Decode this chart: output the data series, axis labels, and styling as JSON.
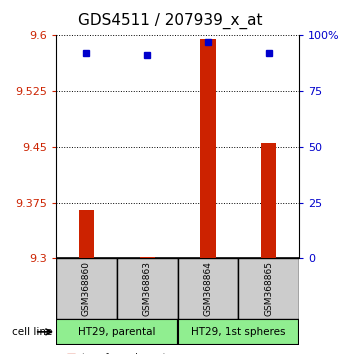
{
  "title": "GDS4511 / 207939_x_at",
  "samples": [
    "GSM368860",
    "GSM368863",
    "GSM368864",
    "GSM368865"
  ],
  "transformed_counts": [
    9.365,
    9.302,
    9.595,
    9.455
  ],
  "percentile_ranks": [
    92,
    91,
    97,
    92
  ],
  "cell_lines": [
    {
      "label": "HT29, parental",
      "samples": [
        0,
        1
      ],
      "color": "#90ee90"
    },
    {
      "label": "HT29, 1st spheres",
      "samples": [
        2,
        3
      ],
      "color": "#90ee90"
    }
  ],
  "ylim_left": [
    9.3,
    9.6
  ],
  "ylim_right": [
    0,
    100
  ],
  "yticks_left": [
    9.3,
    9.375,
    9.45,
    9.525,
    9.6
  ],
  "yticks_right": [
    0,
    25,
    50,
    75,
    100
  ],
  "ytick_labels_right": [
    "0",
    "25",
    "50",
    "75",
    "100%"
  ],
  "bar_color": "#cc2200",
  "dot_color": "#0000cc",
  "bar_baseline": 9.3,
  "background_color": "#ffffff",
  "sample_box_color": "#cccccc",
  "title_fontsize": 11,
  "tick_fontsize": 8,
  "label_fontsize": 8
}
